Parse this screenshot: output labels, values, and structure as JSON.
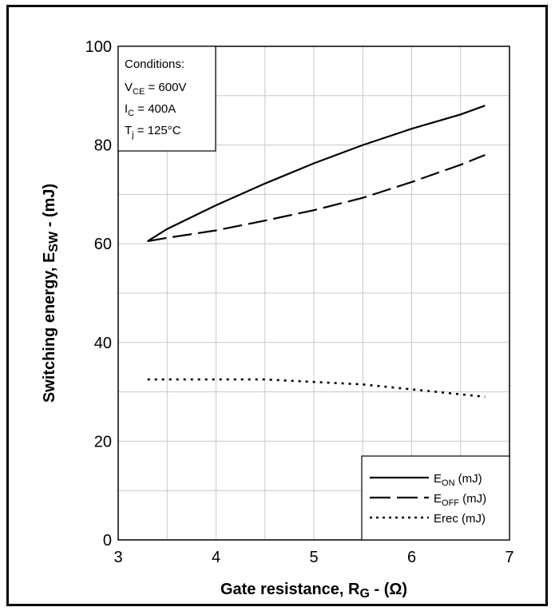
{
  "chart_data": {
    "type": "line",
    "title": "",
    "xlabel": {
      "main": "Gate resistance, R",
      "sub": "G",
      "tail": " - (Ω)"
    },
    "ylabel": {
      "main": "Switching energy, E",
      "sub": "SW",
      "tail": " - (mJ)"
    },
    "xlim": [
      3,
      7
    ],
    "ylim": [
      0,
      100
    ],
    "xticks": [
      3,
      4,
      5,
      6,
      7
    ],
    "yticks": [
      0,
      20,
      40,
      60,
      80,
      100
    ],
    "grid": true,
    "conditions": {
      "title": "Conditions:",
      "lines": [
        {
          "main": "V",
          "sub": "CE",
          "tail": " = 600V"
        },
        {
          "main": "I",
          "sub": "C",
          "tail": " = 400A"
        },
        {
          "main": "T",
          "sub": "j",
          "tail": " = 125°C"
        }
      ]
    },
    "legend_position": "bottom-right",
    "series": [
      {
        "name": "EON (mJ)",
        "legend": {
          "main": "E",
          "sub": "ON",
          "tail": " (mJ)"
        },
        "style": "solid",
        "x": [
          3.3,
          3.5,
          4.0,
          4.5,
          5.0,
          5.5,
          6.0,
          6.5,
          6.75
        ],
        "y": [
          60.5,
          63.0,
          67.8,
          72.2,
          76.3,
          80.0,
          83.3,
          86.2,
          88.0
        ]
      },
      {
        "name": "EOFF (mJ)",
        "legend": {
          "main": "E",
          "sub": "OFF",
          "tail": " (mJ)"
        },
        "style": "dashed",
        "x": [
          3.3,
          3.5,
          4.0,
          4.5,
          5.0,
          5.5,
          6.0,
          6.5,
          6.75
        ],
        "y": [
          60.5,
          61.2,
          62.7,
          64.7,
          66.8,
          69.3,
          72.5,
          76.0,
          78.0
        ]
      },
      {
        "name": "Erec (mJ)",
        "legend": {
          "main": "Erec (mJ)",
          "sub": "",
          "tail": ""
        },
        "style": "dotted",
        "x": [
          3.3,
          4.0,
          4.5,
          5.0,
          5.5,
          6.0,
          6.5,
          6.75
        ],
        "y": [
          32.5,
          32.5,
          32.5,
          32.0,
          31.5,
          30.5,
          29.5,
          29.0
        ]
      }
    ]
  }
}
